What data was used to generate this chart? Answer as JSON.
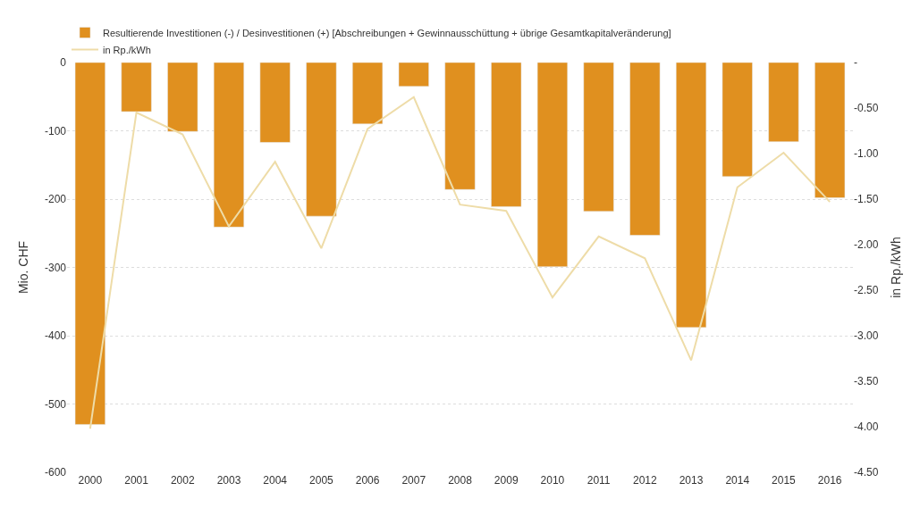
{
  "chart_data": {
    "type": "bar",
    "categories": [
      "2000",
      "2001",
      "2002",
      "2003",
      "2004",
      "2005",
      "2006",
      "2007",
      "2008",
      "2009",
      "2010",
      "2011",
      "2012",
      "2013",
      "2014",
      "2015",
      "2016"
    ],
    "series": [
      {
        "name": "Resultierende Investitionen (-) / Desinvestitionen (+) [Abschreibungen + Gewinnausschüttung + übrige Gesamtkapitalveränderung]",
        "color": "#e0901f",
        "values": [
          -530,
          -72,
          -101,
          -241,
          -117,
          -225,
          -90,
          -35,
          -186,
          -211,
          -299,
          -218,
          -253,
          -388,
          -167,
          -116,
          -198
        ]
      },
      {
        "name": "in Rp./kWh",
        "color": "#eedca8",
        "type": "line",
        "axis": "y2",
        "values": [
          -4.02,
          -0.55,
          -0.79,
          -1.8,
          -1.09,
          -2.04,
          -0.73,
          -0.38,
          -1.56,
          -1.63,
          -2.58,
          -1.91,
          -2.15,
          -3.27,
          -1.37,
          -0.99,
          -1.53
        ]
      }
    ],
    "ylabel": "Mio. CHF",
    "y2label": "in Rp./kWh",
    "ylim": [
      -600,
      0
    ],
    "yticks": [
      0,
      -100,
      -200,
      -300,
      -400,
      -500,
      -600
    ],
    "y2lim": [
      -4.5,
      0
    ],
    "y2ticks": [
      {
        "value": 0,
        "label": "-"
      },
      {
        "value": -0.5,
        "label": "-0.50"
      },
      {
        "value": -1,
        "label": "-1.00"
      },
      {
        "value": -1.5,
        "label": "-1.50"
      },
      {
        "value": -2,
        "label": "-2.00"
      },
      {
        "value": -2.5,
        "label": "-2.50"
      },
      {
        "value": -3,
        "label": "-3.00"
      },
      {
        "value": -3.5,
        "label": "-3.50"
      },
      {
        "value": -4,
        "label": "-4.00"
      },
      {
        "value": -4.5,
        "label": "-4.50"
      }
    ],
    "grid": "y",
    "legend": "top left",
    "marker": "none",
    "line_style": "solid"
  }
}
